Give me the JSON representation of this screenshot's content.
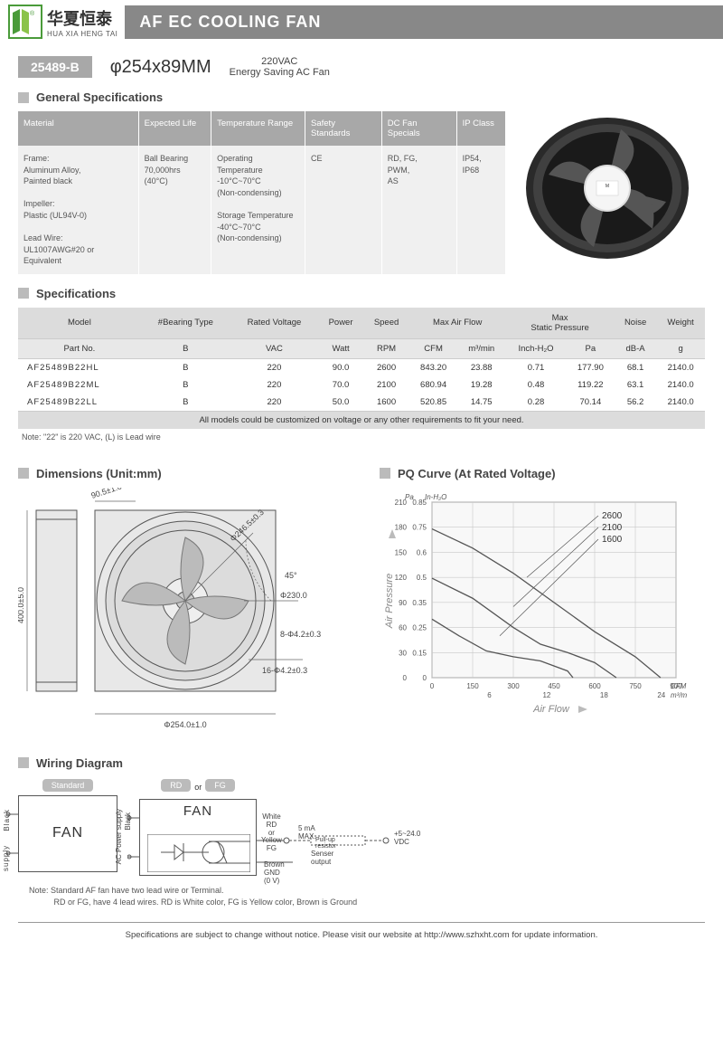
{
  "logo": {
    "cn": "华夏恒泰",
    "en": "HUA XIA HENG TAI"
  },
  "title": "AF EC COOLING FAN",
  "model": {
    "badge": "25489-B",
    "dimension": "φ254x89MM",
    "desc1": "220VAC",
    "desc2": "Energy Saving AC Fan"
  },
  "sections": {
    "general": "General Specifications",
    "specs": "Specifications",
    "dimensions": "Dimensions (Unit:mm)",
    "pq": "PQ Curve (At Rated Voltage)",
    "wiring": "Wiring Diagram"
  },
  "general_table": {
    "headers": [
      "Material",
      "Expected Life",
      "Temperature Range",
      "Safety Standards",
      "DC Fan Specials",
      "IP Class"
    ],
    "cells": [
      "Frame:\nAluminum Alloy,\nPainted black\n\nImpeller:\nPlastic (UL94V-0)\n\nLead Wire:\nUL1007AWG#20 or Equivalent",
      "Ball Bearing\n70,000hrs (40°C)",
      "Operating Temperature\n-10°C~70°C\n(Non-condensing)\n\nStorage Temperature\n-40°C~70°C\n(Non-condensing)",
      "CE",
      "RD, FG,\nPWM,\nAS",
      "IP54, IP68"
    ]
  },
  "spec_table": {
    "h1": [
      "Model",
      "#Bearing Type",
      "Rated Voltage",
      "Power",
      "Speed",
      "Max  Air  Flow",
      "Max\nStatic  Pressure",
      "Noise",
      "Weight"
    ],
    "h2": [
      "Part No.",
      "B",
      "VAC",
      "Watt",
      "RPM",
      "CFM",
      "m³/min",
      "Inch-H₂O",
      "Pa",
      "dB-A",
      "g"
    ],
    "rows": [
      [
        "AF25489B22HL",
        "B",
        "220",
        "90.0",
        "2600",
        "843.20",
        "23.88",
        "0.71",
        "177.90",
        "68.1",
        "2140.0"
      ],
      [
        "AF25489B22ML",
        "B",
        "220",
        "70.0",
        "2100",
        "680.94",
        "19.28",
        "0.48",
        "119.22",
        "63.1",
        "2140.0"
      ],
      [
        "AF25489B22LL",
        "B",
        "220",
        "50.0",
        "1600",
        "520.85",
        "14.75",
        "0.28",
        "70.14",
        "56.2",
        "2140.0"
      ]
    ],
    "note_row": "All models could be customized on voltage or any other requirements to fit your need.",
    "footnote": "Note: \"22\" is  220 VAC,  (L) is Lead wire"
  },
  "dimensions": {
    "labels": [
      "90.5±1.0",
      "400.0±5.0",
      "Φ254.0±1.0",
      "Φ246.5±0.3",
      "Φ230.0",
      "45°",
      "8-Φ4.2±0.3",
      "16-Φ4.2±0.3"
    ]
  },
  "pq": {
    "y_label": "Air Pressure",
    "x_label": "Air Flow",
    "y_unit1": "Pa",
    "y_unit2": "In-H₂O",
    "x_unit1": "CFM",
    "x_unit2": "m³/min",
    "y_ticks_pa": [
      0,
      30,
      60,
      90,
      120,
      150,
      180,
      210
    ],
    "y_ticks_in": [
      0,
      0.15,
      0.25,
      0.35,
      0.5,
      0.6,
      0.75,
      0.85
    ],
    "x_ticks_cfm": [
      0,
      150,
      300,
      450,
      600,
      750,
      900
    ],
    "x_ticks_m3": [
      6,
      12,
      18,
      24
    ],
    "curves": {
      "2600": [
        [
          0,
          178
        ],
        [
          150,
          155
        ],
        [
          300,
          125
        ],
        [
          450,
          90
        ],
        [
          600,
          55
        ],
        [
          750,
          25
        ],
        [
          843,
          0
        ]
      ],
      "2100": [
        [
          0,
          119
        ],
        [
          150,
          95
        ],
        [
          300,
          60
        ],
        [
          400,
          40
        ],
        [
          500,
          30
        ],
        [
          600,
          18
        ],
        [
          680,
          0
        ]
      ],
      "1600": [
        [
          0,
          70
        ],
        [
          100,
          50
        ],
        [
          200,
          32
        ],
        [
          300,
          25
        ],
        [
          400,
          20
        ],
        [
          500,
          8
        ],
        [
          520,
          0
        ]
      ]
    },
    "legend": [
      "2600",
      "2100",
      "1600"
    ],
    "grid_color": "#c8c8c8",
    "line_color": "#555",
    "bg": "#f8f8f8"
  },
  "wiring": {
    "badges": {
      "std": "Standard",
      "rd": "RD",
      "or": "or",
      "fg": "FG"
    },
    "fan": "FAN",
    "labels": {
      "ac": "AC Power supply",
      "black": "Black",
      "white": "White  RD",
      "or2": "or",
      "yellow": "Yellow FG",
      "brown": "Brown",
      "gnd": "GND (0 V)",
      "ma": "5 mA MAX.",
      "pull": "Pull-up resistor",
      "sensor": "Senser output",
      "vdc": "+5~24.0 VDC"
    },
    "note": "Note: Standard AF fan have two lead wire or Terminal.\n           RD or FG, have 4 lead wires. RD is White color, FG is Yellow color, Brown is Ground"
  },
  "footer": "Specifications are subject to change without notice. Please visit our website at http://www.szhxht.com for update information."
}
